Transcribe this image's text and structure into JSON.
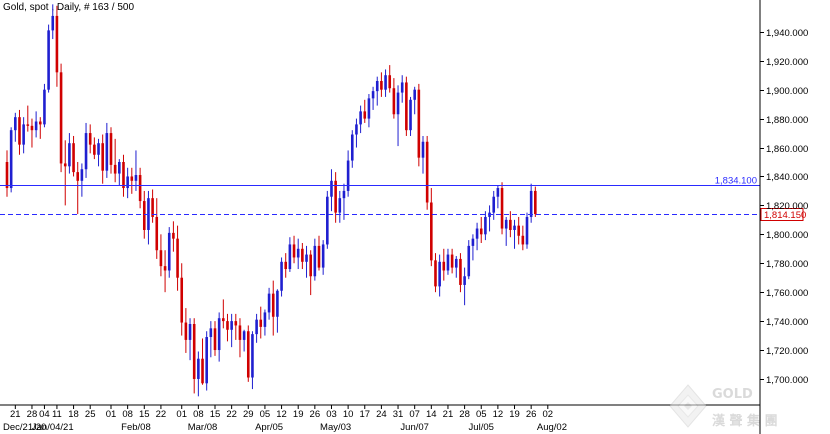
{
  "chart_data": {
    "type": "candlestick",
    "title": "Gold, spot , Daily, # 163 / 500",
    "y_ticks": [
      1700,
      1720,
      1740,
      1760,
      1780,
      1800,
      1820,
      1840,
      1860,
      1880,
      1900,
      1920,
      1940
    ],
    "y_tick_labels": [
      "1,700.000",
      "1,720.000",
      "1,740.000",
      "1,760.000",
      "1,780.000",
      "1,800.000",
      "1,820.000",
      "1,840.000",
      "1,860.000",
      "1,880.000",
      "1,900.000",
      "1,920.000",
      "1,940.000"
    ],
    "ylim": [
      1682,
      1962
    ],
    "grid": false,
    "x_day_labels": [
      {
        "i": 2,
        "label": "21"
      },
      {
        "i": 6,
        "label": "28"
      },
      {
        "i": 9,
        "label": "04"
      },
      {
        "i": 12,
        "label": "11"
      },
      {
        "i": 16,
        "label": "18"
      },
      {
        "i": 20,
        "label": "25"
      },
      {
        "i": 25,
        "label": "01"
      },
      {
        "i": 29,
        "label": "08"
      },
      {
        "i": 33,
        "label": "15"
      },
      {
        "i": 37,
        "label": "22"
      },
      {
        "i": 42,
        "label": "01"
      },
      {
        "i": 46,
        "label": "08"
      },
      {
        "i": 50,
        "label": "15"
      },
      {
        "i": 54,
        "label": "22"
      },
      {
        "i": 58,
        "label": "29"
      },
      {
        "i": 62,
        "label": "05"
      },
      {
        "i": 66,
        "label": "12"
      },
      {
        "i": 70,
        "label": "19"
      },
      {
        "i": 74,
        "label": "26"
      },
      {
        "i": 78,
        "label": "03"
      },
      {
        "i": 82,
        "label": "10"
      },
      {
        "i": 86,
        "label": "17"
      },
      {
        "i": 90,
        "label": "24"
      },
      {
        "i": 94,
        "label": "31"
      },
      {
        "i": 98,
        "label": "07"
      },
      {
        "i": 102,
        "label": "14"
      },
      {
        "i": 106,
        "label": "21"
      },
      {
        "i": 110,
        "label": "28"
      },
      {
        "i": 114,
        "label": "05"
      },
      {
        "i": 118,
        "label": "12"
      },
      {
        "i": 122,
        "label": "19"
      },
      {
        "i": 126,
        "label": "26"
      },
      {
        "i": 130,
        "label": "02"
      }
    ],
    "x_month_labels": [
      {
        "i": 3,
        "label": "Dec/21/20"
      },
      {
        "i": 11,
        "label": "Jan/04/21"
      },
      {
        "i": 31,
        "label": "Feb/08"
      },
      {
        "i": 47,
        "label": "Mar/08"
      },
      {
        "i": 63,
        "label": "Apr/05"
      },
      {
        "i": 79,
        "label": "May/03"
      },
      {
        "i": 98,
        "label": "Jun/07"
      },
      {
        "i": 114,
        "label": "Jul/05"
      },
      {
        "i": 131,
        "label": "Aug/02"
      }
    ],
    "levels": [
      {
        "value": 1834.1,
        "label": "1,834.100",
        "style": "solid",
        "color": "#2a2aff"
      },
      {
        "value": 1814.15,
        "label": "1,814.150",
        "style": "dashed",
        "color": "#2a2aff",
        "box_color": "#d00000"
      }
    ],
    "colors": {
      "up": "#1f1fd0",
      "down": "#d00000",
      "axis": "#000000"
    },
    "candles": [
      [
        1850,
        1858,
        1826,
        1832
      ],
      [
        1832,
        1874,
        1829,
        1872
      ],
      [
        1872,
        1884,
        1864,
        1881
      ],
      [
        1881,
        1886,
        1855,
        1862
      ],
      [
        1862,
        1881,
        1856,
        1876
      ],
      [
        1876,
        1889,
        1871,
        1875
      ],
      [
        1875,
        1880,
        1860,
        1872
      ],
      [
        1872,
        1885,
        1867,
        1878
      ],
      [
        1878,
        1881,
        1866,
        1876
      ],
      [
        1876,
        1904,
        1874,
        1900
      ],
      [
        1900,
        1945,
        1898,
        1941
      ],
      [
        1941,
        1959,
        1935,
        1951
      ],
      [
        1951,
        1958,
        1902,
        1912
      ],
      [
        1912,
        1918,
        1843,
        1849
      ],
      [
        1849,
        1865,
        1820,
        1847
      ],
      [
        1847,
        1870,
        1842,
        1863
      ],
      [
        1863,
        1868,
        1840,
        1843
      ],
      [
        1843,
        1850,
        1814,
        1837
      ],
      [
        1837,
        1849,
        1826,
        1845
      ],
      [
        1845,
        1877,
        1839,
        1870
      ],
      [
        1870,
        1876,
        1856,
        1862
      ],
      [
        1862,
        1867,
        1852,
        1855
      ],
      [
        1855,
        1866,
        1847,
        1863
      ],
      [
        1863,
        1869,
        1835,
        1844
      ],
      [
        1844,
        1877,
        1839,
        1870
      ],
      [
        1870,
        1874,
        1842,
        1848
      ],
      [
        1848,
        1866,
        1836,
        1842
      ],
      [
        1842,
        1852,
        1834,
        1850
      ],
      [
        1850,
        1855,
        1826,
        1832
      ],
      [
        1832,
        1846,
        1825,
        1840
      ],
      [
        1840,
        1846,
        1828,
        1837
      ],
      [
        1837,
        1858,
        1830,
        1841
      ],
      [
        1841,
        1846,
        1818,
        1823
      ],
      [
        1823,
        1830,
        1797,
        1803
      ],
      [
        1803,
        1830,
        1793,
        1825
      ],
      [
        1825,
        1831,
        1808,
        1812
      ],
      [
        1812,
        1825,
        1783,
        1789
      ],
      [
        1789,
        1800,
        1771,
        1778
      ],
      [
        1778,
        1789,
        1760,
        1775
      ],
      [
        1775,
        1805,
        1770,
        1801
      ],
      [
        1801,
        1809,
        1788,
        1797
      ],
      [
        1797,
        1806,
        1761,
        1770
      ],
      [
        1770,
        1780,
        1730,
        1739
      ],
      [
        1739,
        1749,
        1718,
        1727
      ],
      [
        1727,
        1742,
        1713,
        1738
      ],
      [
        1738,
        1742,
        1690,
        1700
      ],
      [
        1700,
        1719,
        1688,
        1714
      ],
      [
        1714,
        1728,
        1696,
        1697
      ],
      [
        1697,
        1733,
        1692,
        1729
      ],
      [
        1729,
        1740,
        1715,
        1735
      ],
      [
        1735,
        1740,
        1716,
        1720
      ],
      [
        1720,
        1746,
        1712,
        1742
      ],
      [
        1742,
        1755,
        1735,
        1740
      ],
      [
        1740,
        1745,
        1726,
        1734
      ],
      [
        1734,
        1745,
        1722,
        1740
      ],
      [
        1740,
        1745,
        1727,
        1737
      ],
      [
        1737,
        1742,
        1715,
        1727
      ],
      [
        1727,
        1734,
        1719,
        1733
      ],
      [
        1733,
        1737,
        1698,
        1701
      ],
      [
        1701,
        1733,
        1693,
        1731
      ],
      [
        1731,
        1745,
        1725,
        1741
      ],
      [
        1741,
        1750,
        1728,
        1736
      ],
      [
        1736,
        1748,
        1730,
        1746
      ],
      [
        1746,
        1763,
        1741,
        1759
      ],
      [
        1759,
        1768,
        1730,
        1743
      ],
      [
        1743,
        1762,
        1732,
        1761
      ],
      [
        1761,
        1784,
        1757,
        1781
      ],
      [
        1781,
        1787,
        1770,
        1776
      ],
      [
        1776,
        1798,
        1774,
        1793
      ],
      [
        1793,
        1799,
        1780,
        1784
      ],
      [
        1784,
        1797,
        1776,
        1790
      ],
      [
        1790,
        1794,
        1776,
        1781
      ],
      [
        1781,
        1792,
        1770,
        1786
      ],
      [
        1786,
        1789,
        1758,
        1771
      ],
      [
        1771,
        1797,
        1768,
        1792
      ],
      [
        1792,
        1799,
        1775,
        1777
      ],
      [
        1777,
        1796,
        1772,
        1793
      ],
      [
        1793,
        1830,
        1790,
        1826
      ],
      [
        1826,
        1845,
        1816,
        1837
      ],
      [
        1837,
        1843,
        1808,
        1815
      ],
      [
        1815,
        1830,
        1808,
        1825
      ],
      [
        1825,
        1835,
        1810,
        1830
      ],
      [
        1830,
        1858,
        1826,
        1851
      ],
      [
        1851,
        1872,
        1846,
        1869
      ],
      [
        1869,
        1880,
        1860,
        1876
      ],
      [
        1876,
        1889,
        1870,
        1885
      ],
      [
        1885,
        1893,
        1877,
        1880
      ],
      [
        1880,
        1897,
        1874,
        1894
      ],
      [
        1894,
        1902,
        1886,
        1899
      ],
      [
        1899,
        1909,
        1889,
        1906
      ],
      [
        1906,
        1912,
        1895,
        1900
      ],
      [
        1900,
        1914,
        1895,
        1910
      ],
      [
        1910,
        1917,
        1898,
        1901
      ],
      [
        1901,
        1908,
        1880,
        1883
      ],
      [
        1883,
        1903,
        1861,
        1898
      ],
      [
        1898,
        1910,
        1891,
        1905
      ],
      [
        1905,
        1909,
        1868,
        1872
      ],
      [
        1872,
        1895,
        1868,
        1893
      ],
      [
        1893,
        1902,
        1883,
        1900
      ],
      [
        1900,
        1904,
        1847,
        1853
      ],
      [
        1853,
        1868,
        1842,
        1864
      ],
      [
        1864,
        1868,
        1817,
        1822
      ],
      [
        1822,
        1832,
        1778,
        1782
      ],
      [
        1782,
        1787,
        1760,
        1764
      ],
      [
        1764,
        1786,
        1757,
        1781
      ],
      [
        1781,
        1790,
        1768,
        1775
      ],
      [
        1775,
        1790,
        1772,
        1786
      ],
      [
        1786,
        1790,
        1773,
        1777
      ],
      [
        1777,
        1785,
        1770,
        1783
      ],
      [
        1783,
        1787,
        1760,
        1765
      ],
      [
        1765,
        1777,
        1751,
        1771
      ],
      [
        1771,
        1796,
        1769,
        1792
      ],
      [
        1792,
        1800,
        1782,
        1797
      ],
      [
        1797,
        1808,
        1789,
        1804
      ],
      [
        1804,
        1812,
        1794,
        1800
      ],
      [
        1800,
        1816,
        1796,
        1812
      ],
      [
        1812,
        1820,
        1802,
        1815
      ],
      [
        1815,
        1830,
        1810,
        1826
      ],
      [
        1826,
        1834,
        1818,
        1832
      ],
      [
        1832,
        1836,
        1800,
        1804
      ],
      [
        1804,
        1812,
        1792,
        1810
      ],
      [
        1810,
        1816,
        1798,
        1803
      ],
      [
        1803,
        1810,
        1790,
        1806
      ],
      [
        1806,
        1812,
        1793,
        1799
      ],
      [
        1799,
        1806,
        1789,
        1793
      ],
      [
        1793,
        1815,
        1790,
        1812
      ],
      [
        1812,
        1835,
        1808,
        1830
      ],
      [
        1830,
        1833,
        1812,
        1814
      ]
    ]
  },
  "watermark": {
    "logo_icon": "diamond-logo-icon",
    "text_latin": "GOLD",
    "text_cjk": "漢 聲 集 團"
  }
}
